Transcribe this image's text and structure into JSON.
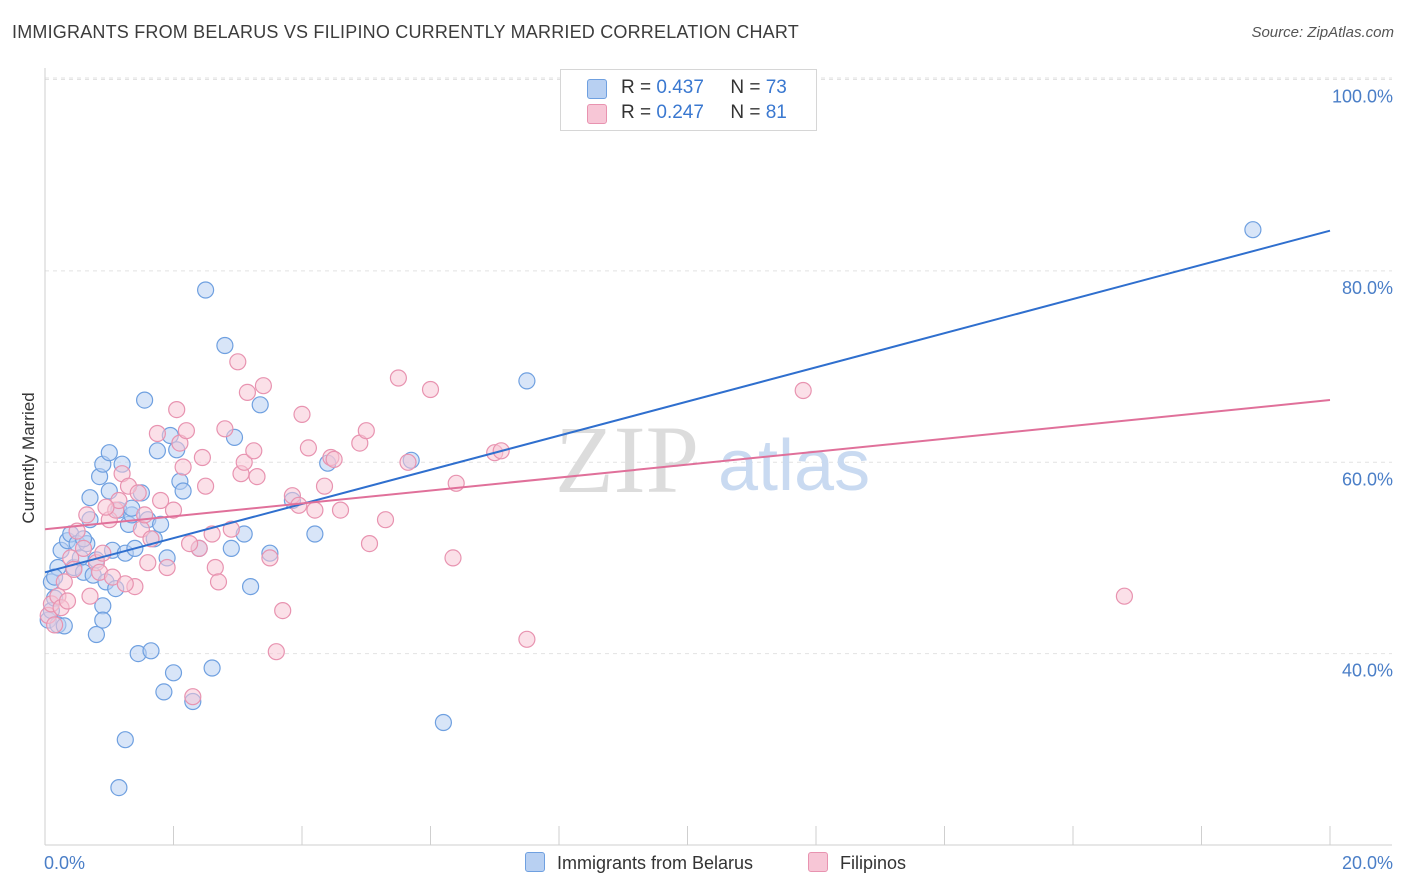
{
  "title": "IMMIGRANTS FROM BELARUS VS FILIPINO CURRENTLY MARRIED CORRELATION CHART",
  "source": "Source: ZipAtlas.com",
  "watermark": {
    "zip": "ZIP",
    "atlas": "atlas"
  },
  "legend": [
    {
      "r_label": "R =",
      "r_value": "0.437",
      "n_label": "N =",
      "n_value": "73"
    },
    {
      "r_label": "R =",
      "r_value": "0.247",
      "n_label": "N =",
      "n_value": "81"
    }
  ],
  "chart_data": {
    "type": "scatter",
    "title": "IMMIGRANTS FROM BELARUS VS FILIPINO CURRENTLY MARRIED CORRELATION CHART",
    "xlabel": "",
    "ylabel": "Currently Married",
    "xlim": [
      0,
      20
    ],
    "ylim": [
      20,
      100
    ],
    "x_tick_labels": [
      "0.0%",
      "20.0%"
    ],
    "y_ticks": [
      40,
      60,
      80,
      100
    ],
    "y_tick_labels": [
      "40.0%",
      "60.0%",
      "80.0%",
      "100.0%"
    ],
    "legend_position": "top-center",
    "series": [
      {
        "name": "Immigrants from Belarus",
        "color": "#6fa0e0",
        "fill": "#b8d0f2",
        "r": 0.437,
        "n": 73,
        "trendline": {
          "x": [
            0,
            20
          ],
          "y": [
            48.5,
            84.2
          ],
          "color": "#2f6fce"
        },
        "points": [
          [
            0.05,
            43.5
          ],
          [
            0.1,
            44.5
          ],
          [
            0.15,
            45.8
          ],
          [
            0.2,
            43.0
          ],
          [
            0.1,
            47.5
          ],
          [
            0.2,
            49.0
          ],
          [
            0.25,
            50.8
          ],
          [
            0.35,
            51.8
          ],
          [
            0.4,
            52.5
          ],
          [
            0.45,
            49.0
          ],
          [
            0.5,
            51.5
          ],
          [
            0.55,
            50.0
          ],
          [
            0.6,
            48.5
          ],
          [
            0.65,
            51.5
          ],
          [
            0.7,
            54.0
          ],
          [
            0.7,
            56.3
          ],
          [
            0.75,
            48.2
          ],
          [
            0.8,
            49.8
          ],
          [
            0.85,
            58.5
          ],
          [
            0.9,
            59.8
          ],
          [
            0.9,
            45.0
          ],
          [
            0.95,
            47.5
          ],
          [
            1.0,
            57.0
          ],
          [
            1.0,
            61.0
          ],
          [
            1.05,
            50.8
          ],
          [
            1.1,
            46.8
          ],
          [
            1.15,
            55.0
          ],
          [
            1.2,
            59.8
          ],
          [
            1.25,
            50.5
          ],
          [
            1.3,
            53.5
          ],
          [
            1.35,
            54.5
          ],
          [
            1.4,
            51.0
          ],
          [
            1.5,
            56.8
          ],
          [
            1.55,
            66.5
          ],
          [
            1.6,
            54.0
          ],
          [
            1.7,
            52.0
          ],
          [
            1.75,
            61.2
          ],
          [
            1.8,
            53.5
          ],
          [
            1.9,
            50.0
          ],
          [
            1.95,
            62.8
          ],
          [
            2.0,
            38.0
          ],
          [
            2.05,
            61.3
          ],
          [
            2.1,
            58.0
          ],
          [
            2.15,
            57.0
          ],
          [
            2.4,
            51.0
          ],
          [
            2.5,
            78.0
          ],
          [
            2.6,
            38.5
          ],
          [
            2.8,
            72.2
          ],
          [
            2.9,
            51.0
          ],
          [
            2.95,
            62.6
          ],
          [
            3.1,
            52.5
          ],
          [
            3.2,
            47.0
          ],
          [
            3.35,
            66.0
          ],
          [
            3.5,
            50.5
          ],
          [
            3.85,
            56.0
          ],
          [
            4.2,
            52.5
          ],
          [
            4.4,
            59.9
          ],
          [
            5.7,
            60.2
          ],
          [
            6.2,
            32.8
          ],
          [
            7.5,
            68.5
          ],
          [
            18.8,
            84.3
          ],
          [
            1.25,
            31.0
          ],
          [
            1.15,
            26.0
          ],
          [
            1.85,
            36.0
          ],
          [
            2.3,
            35.0
          ],
          [
            1.45,
            40.0
          ],
          [
            1.65,
            40.3
          ],
          [
            0.8,
            42.0
          ],
          [
            0.9,
            43.5
          ],
          [
            0.3,
            42.9
          ],
          [
            0.6,
            52.0
          ],
          [
            0.15,
            48.0
          ],
          [
            1.35,
            55.2
          ]
        ]
      },
      {
        "name": "Filipinos",
        "color": "#e893b0",
        "fill": "#f7c6d6",
        "r": 0.247,
        "n": 81,
        "trendline": {
          "x": [
            0,
            20
          ],
          "y": [
            53.0,
            66.5
          ],
          "color": "#e0709a"
        },
        "points": [
          [
            0.05,
            44.0
          ],
          [
            0.1,
            45.2
          ],
          [
            0.15,
            43.0
          ],
          [
            0.2,
            46.0
          ],
          [
            0.25,
            44.8
          ],
          [
            0.3,
            47.5
          ],
          [
            0.4,
            50.0
          ],
          [
            0.5,
            52.8
          ],
          [
            0.6,
            51.0
          ],
          [
            0.7,
            46.0
          ],
          [
            0.8,
            49.5
          ],
          [
            0.85,
            48.5
          ],
          [
            0.9,
            50.5
          ],
          [
            1.0,
            54.0
          ],
          [
            1.1,
            55.0
          ],
          [
            1.15,
            56.0
          ],
          [
            1.2,
            58.8
          ],
          [
            1.3,
            57.5
          ],
          [
            1.4,
            47.0
          ],
          [
            1.5,
            53.0
          ],
          [
            1.55,
            54.5
          ],
          [
            1.65,
            52.0
          ],
          [
            1.75,
            63.0
          ],
          [
            1.8,
            56.0
          ],
          [
            1.9,
            49.0
          ],
          [
            2.0,
            55.0
          ],
          [
            2.05,
            65.5
          ],
          [
            2.1,
            62.0
          ],
          [
            2.15,
            59.5
          ],
          [
            2.2,
            63.3
          ],
          [
            2.3,
            35.5
          ],
          [
            2.4,
            51.0
          ],
          [
            2.45,
            60.5
          ],
          [
            2.5,
            57.5
          ],
          [
            2.6,
            52.5
          ],
          [
            2.65,
            49.0
          ],
          [
            2.7,
            47.5
          ],
          [
            2.8,
            63.5
          ],
          [
            2.9,
            53.0
          ],
          [
            3.0,
            70.5
          ],
          [
            3.05,
            58.8
          ],
          [
            3.1,
            60.0
          ],
          [
            3.15,
            67.3
          ],
          [
            3.25,
            61.2
          ],
          [
            3.3,
            58.5
          ],
          [
            3.4,
            68.0
          ],
          [
            3.5,
            50.0
          ],
          [
            3.6,
            40.2
          ],
          [
            3.7,
            44.5
          ],
          [
            3.85,
            56.5
          ],
          [
            3.95,
            55.5
          ],
          [
            4.0,
            65.0
          ],
          [
            4.1,
            61.5
          ],
          [
            4.2,
            55.0
          ],
          [
            4.35,
            57.5
          ],
          [
            4.45,
            60.5
          ],
          [
            4.6,
            55.0
          ],
          [
            4.9,
            62.0
          ],
          [
            5.0,
            63.3
          ],
          [
            5.05,
            51.5
          ],
          [
            5.3,
            54.0
          ],
          [
            5.5,
            68.8
          ],
          [
            5.65,
            60.0
          ],
          [
            6.0,
            67.6
          ],
          [
            6.35,
            50.0
          ],
          [
            6.4,
            57.8
          ],
          [
            7.0,
            61.0
          ],
          [
            7.1,
            61.2
          ],
          [
            7.5,
            41.5
          ],
          [
            11.8,
            67.5
          ],
          [
            16.8,
            46.0
          ],
          [
            1.05,
            48.0
          ],
          [
            1.25,
            47.3
          ],
          [
            0.35,
            45.5
          ],
          [
            0.65,
            54.5
          ],
          [
            1.6,
            49.5
          ],
          [
            2.25,
            51.5
          ],
          [
            0.95,
            55.3
          ],
          [
            1.45,
            56.8
          ],
          [
            4.5,
            60.3
          ],
          [
            0.45,
            48.8
          ]
        ]
      }
    ]
  }
}
